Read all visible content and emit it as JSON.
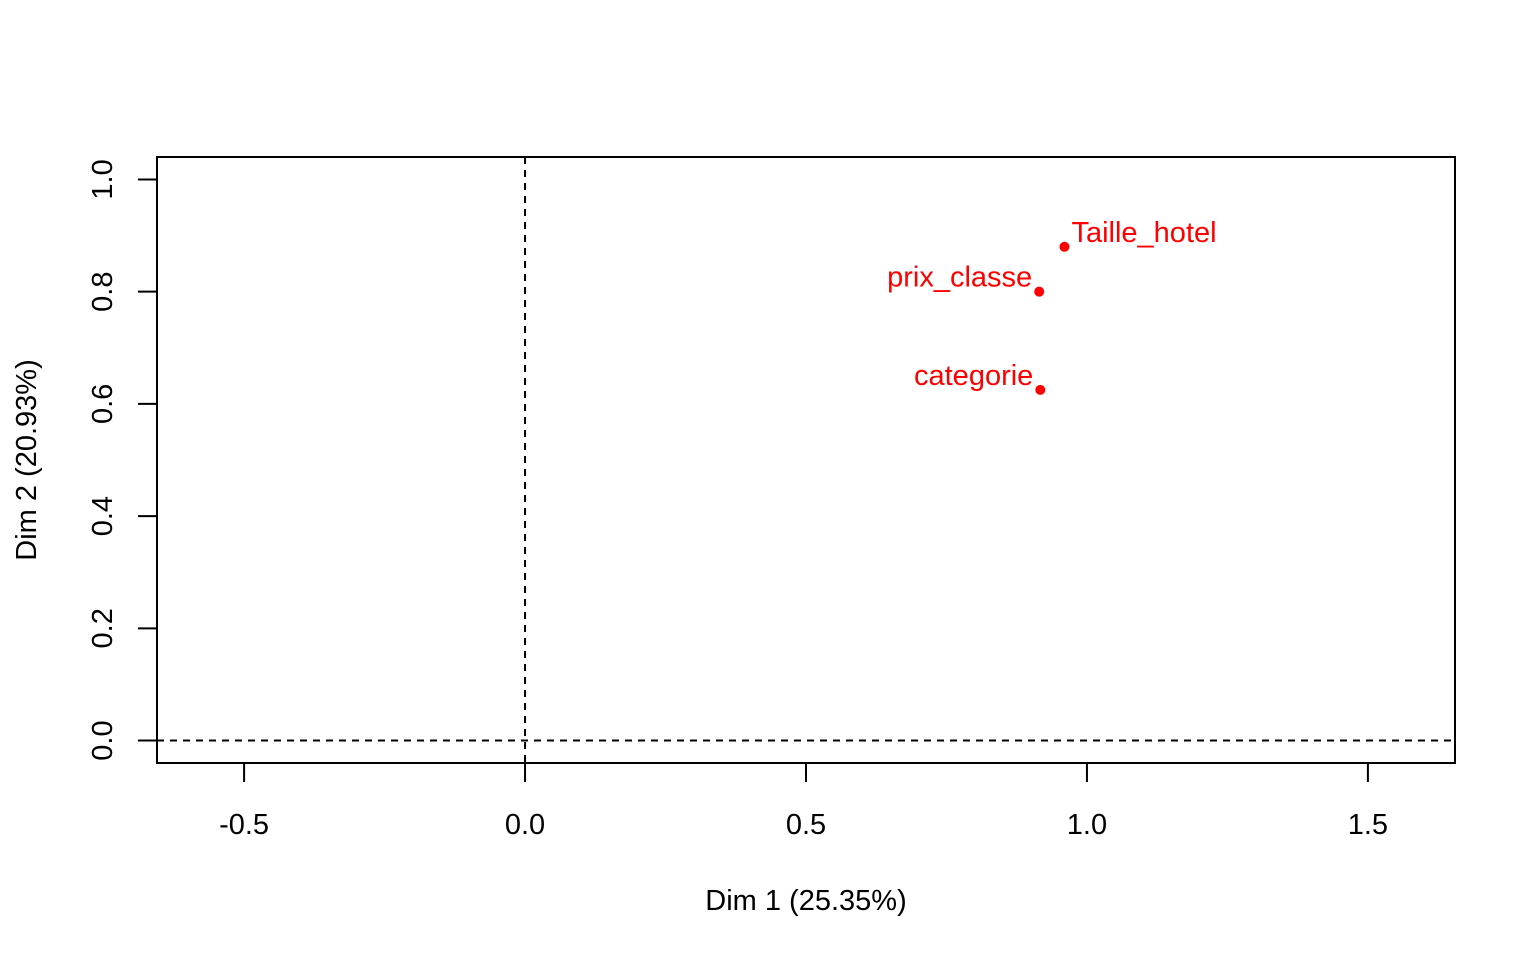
{
  "chart_data": {
    "type": "scatter",
    "title": "",
    "xlabel": "Dim 1 (25.35%)",
    "ylabel": "Dim 2 (20.93%)",
    "xlim": [
      -0.655,
      1.655
    ],
    "ylim": [
      -0.04,
      1.04
    ],
    "xticks": [
      "-0.5",
      "0.0",
      "0.5",
      "1.0",
      "1.5"
    ],
    "yticks": [
      "0.0",
      "0.2",
      "0.4",
      "0.6",
      "0.8",
      "1.0"
    ],
    "grid": false,
    "reference_lines": {
      "x": 0,
      "y": 0,
      "style": "dashed"
    },
    "point_color": "#ff0000",
    "points": [
      {
        "label": "Taille_hotel",
        "x": 0.96,
        "y": 0.88,
        "label_side": "right"
      },
      {
        "label": "prix_classe",
        "x": 0.915,
        "y": 0.8,
        "label_side": "left"
      },
      {
        "label": "categorie",
        "x": 0.917,
        "y": 0.625,
        "label_side": "left"
      }
    ]
  }
}
